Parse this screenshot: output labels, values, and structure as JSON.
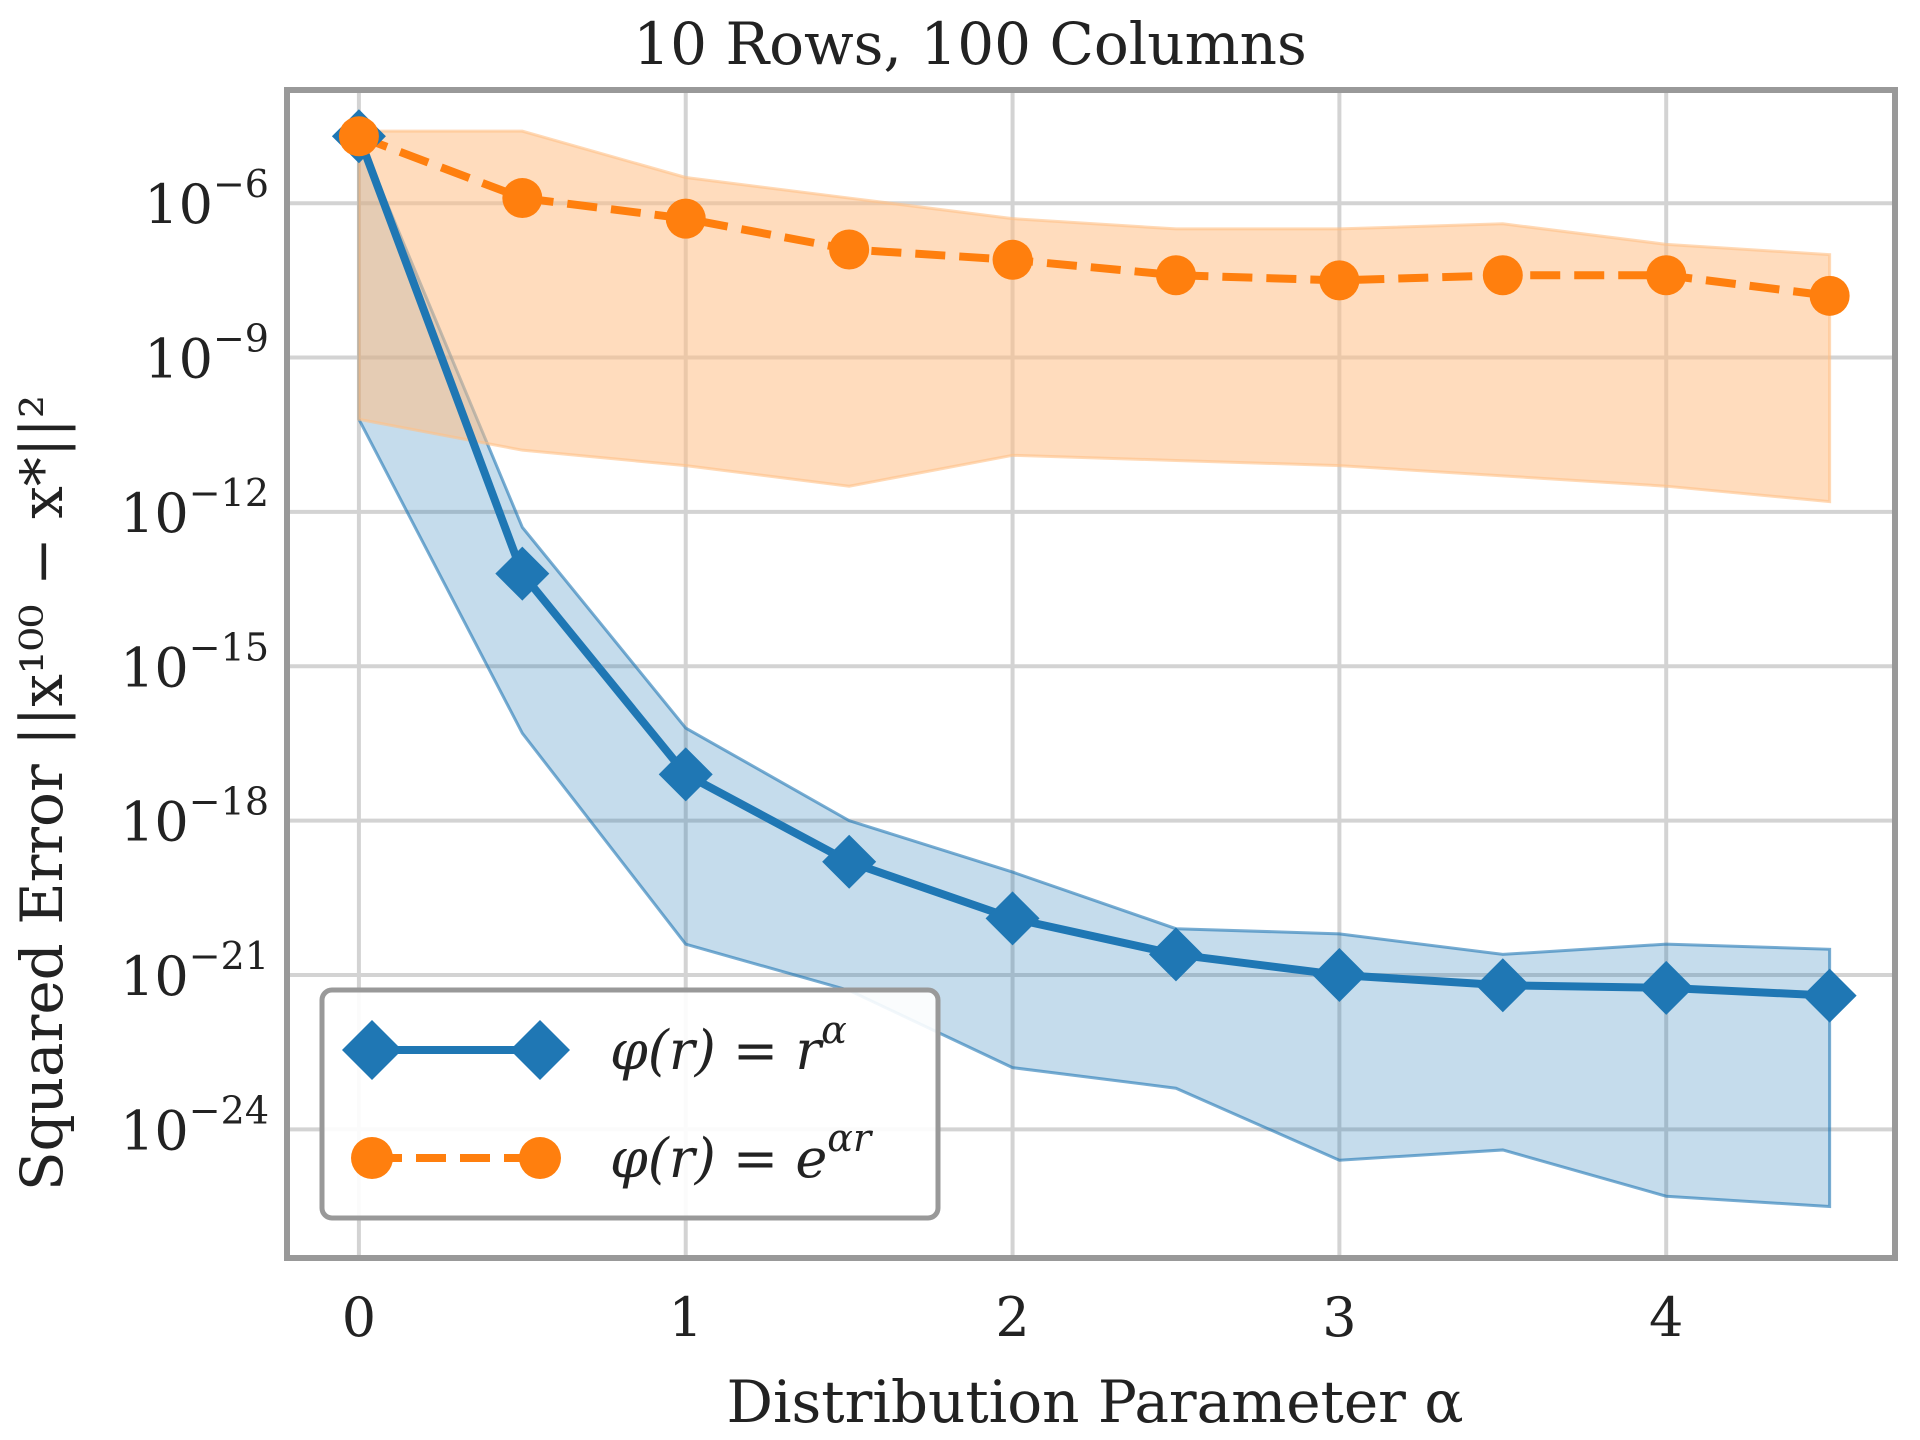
{
  "chart_data": {
    "type": "line",
    "title": "10 Rows, 100 Columns",
    "xlabel": "Distribution Parameter α",
    "ylabel": "Squared Error ||x¹⁰⁰ − x*||²",
    "y_scale": "log",
    "xlim": [
      -0.22,
      4.7
    ],
    "ylim_log10": [
      -26.5,
      -3.8
    ],
    "x_ticks": [
      0,
      1,
      2,
      3,
      4
    ],
    "x_tick_labels": [
      "0",
      "1",
      "2",
      "3",
      "4"
    ],
    "y_ticks_log10": [
      -6,
      -9,
      -12,
      -15,
      -18,
      -21,
      -24
    ],
    "y_tick_labels": [
      {
        "base": "10",
        "exp": "−6"
      },
      {
        "base": "10",
        "exp": "−9"
      },
      {
        "base": "10",
        "exp": "−12"
      },
      {
        "base": "10",
        "exp": "−15"
      },
      {
        "base": "10",
        "exp": "−18"
      },
      {
        "base": "10",
        "exp": "−21"
      },
      {
        "base": "10",
        "exp": "−24"
      }
    ],
    "grid": true,
    "legend_position": "lower-left",
    "x": [
      0,
      0.5,
      1,
      1.5,
      2,
      2.5,
      3,
      3.5,
      4,
      4.5
    ],
    "series": [
      {
        "name": "φ(r) = r^α",
        "legend_main": "φ(r) = r",
        "legend_sup": "α",
        "color": "#1f77b4",
        "band_color": "#1f77b4",
        "style": "solid",
        "marker": "diamond",
        "log10_values": [
          -4.7,
          -13.2,
          -17.1,
          -18.8,
          -19.9,
          -20.6,
          -21.0,
          -21.2,
          -21.25,
          -21.4
        ],
        "log10_upper": [
          -4.7,
          -12.3,
          -16.2,
          -18.0,
          -19.0,
          -20.1,
          -20.2,
          -20.6,
          -20.4,
          -20.5
        ],
        "log10_lower": [
          -10.2,
          -16.3,
          -20.4,
          -21.3,
          -22.8,
          -23.2,
          -24.6,
          -24.4,
          -25.3,
          -25.5
        ]
      },
      {
        "name": "φ(r) = e^{αr}",
        "legend_main": "φ(r) = e",
        "legend_sup": "αr",
        "color": "#ff7f0e",
        "band_color": "#ffbf86",
        "style": "dashed",
        "marker": "circle",
        "log10_values": [
          -4.7,
          -5.9,
          -6.3,
          -6.9,
          -7.1,
          -7.4,
          -7.5,
          -7.4,
          -7.4,
          -7.8
        ],
        "log10_upper": [
          -4.6,
          -4.6,
          -5.5,
          -5.9,
          -6.3,
          -6.5,
          -6.5,
          -6.4,
          -6.8,
          -7.0
        ],
        "log10_lower": [
          -10.2,
          -10.8,
          -11.1,
          -11.5,
          -10.9,
          -11.0,
          -11.1,
          -11.3,
          -11.5,
          -11.8
        ]
      }
    ]
  },
  "colors": {
    "grid": "#d3d3d3",
    "frame": "#999999",
    "text": "#222222"
  }
}
